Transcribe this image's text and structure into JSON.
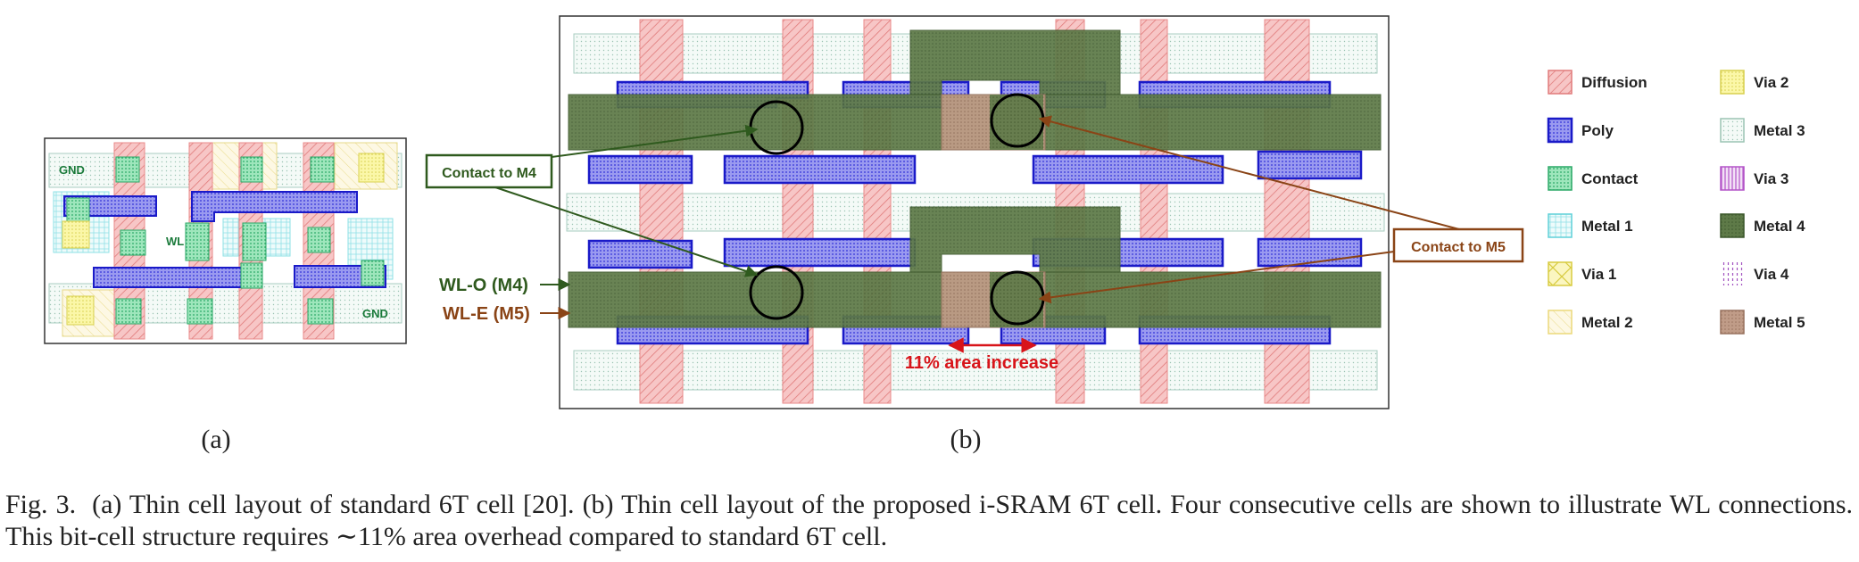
{
  "panel_a": {
    "label": "(a)",
    "gnd_top": "GND",
    "gnd_bottom": "GND",
    "wl": "WL"
  },
  "panel_b": {
    "label": "(b)",
    "contact_m4": "Contact to M4",
    "contact_m5": "Contact to M5",
    "wl_o": "WL-O (M4)",
    "wl_e": "WL-E (M5)",
    "area_increase": "11% area increase"
  },
  "legend": [
    {
      "label": "Diffusion",
      "color": "#e88a8a"
    },
    {
      "label": "Poly",
      "color": "#2b2bd6"
    },
    {
      "label": "Contact",
      "color": "#5ccf8f"
    },
    {
      "label": "Metal 1",
      "color": "#5fd0d8"
    },
    {
      "label": "Via 1",
      "color": "#e8e060"
    },
    {
      "label": "Metal 2",
      "color": "#ecd87a"
    },
    {
      "label": "Via 2",
      "color": "#f2ee80"
    },
    {
      "label": "Metal 3",
      "color": "#9cc4b4"
    },
    {
      "label": "Via 3",
      "color": "#b455c8"
    },
    {
      "label": "Metal 4",
      "color": "#5c7a46"
    },
    {
      "label": "Via 4",
      "color": "#a050c0"
    },
    {
      "label": "Metal 5",
      "color": "#b48c78"
    }
  ],
  "caption": {
    "fig": "Fig. 3.",
    "text": "(a) Thin cell layout of standard 6T cell [20]. (b) Thin cell layout of the proposed i-SRAM 6T cell. Four consecutive cells are shown to illustrate WL connections. This bit-cell structure requires ∼11% area overhead compared to standard 6T cell."
  }
}
